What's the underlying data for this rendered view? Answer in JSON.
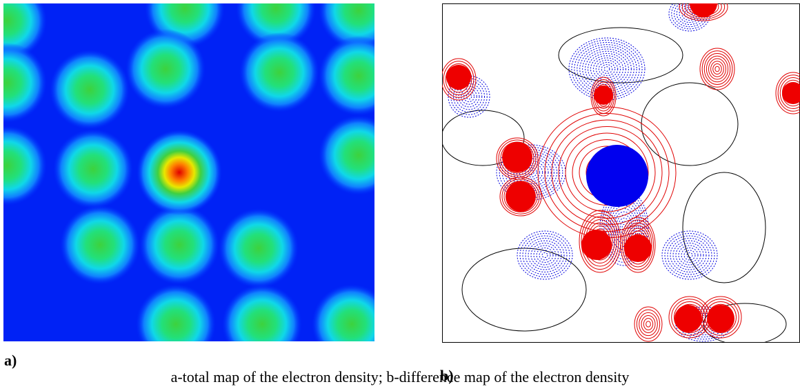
{
  "panels": [
    {
      "label": "a)"
    },
    {
      "label": "b)"
    }
  ],
  "caption": "a-total map of the electron density; b-difference map of the electron density"
}
